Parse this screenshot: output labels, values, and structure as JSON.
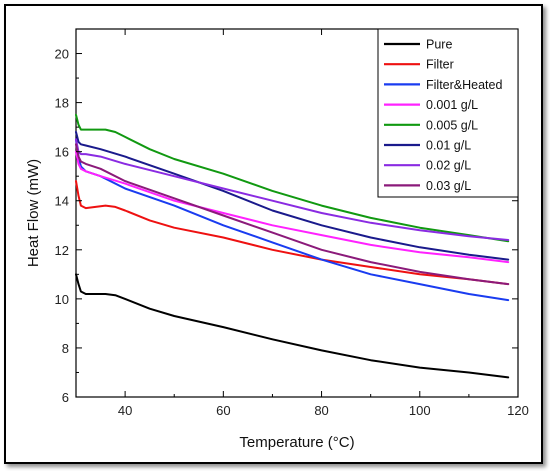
{
  "chart_data": {
    "type": "line",
    "title": "",
    "xlabel": "Temperature (°C)",
    "ylabel": "Heat Flow (mW)",
    "xlim": [
      30,
      120
    ],
    "ylim": [
      6,
      21
    ],
    "xticks": [
      40,
      60,
      80,
      100,
      120
    ],
    "yticks": [
      6,
      8,
      10,
      12,
      14,
      16,
      18,
      20
    ],
    "grid": false,
    "legend_position": "top-right",
    "series": [
      {
        "name": "Pure",
        "color": "#000000",
        "x": [
          30,
          30.5,
          31,
          32,
          34,
          36,
          38,
          40,
          45,
          50,
          60,
          70,
          80,
          90,
          100,
          110,
          118
        ],
        "y": [
          11.0,
          10.6,
          10.3,
          10.2,
          10.2,
          10.2,
          10.15,
          10.0,
          9.6,
          9.3,
          8.85,
          8.35,
          7.9,
          7.5,
          7.2,
          7.0,
          6.8
        ]
      },
      {
        "name": "Filter",
        "color": "#ee1111",
        "x": [
          30,
          30.5,
          31,
          32,
          34,
          36,
          38,
          40,
          45,
          50,
          60,
          70,
          80,
          90,
          100,
          110,
          118
        ],
        "y": [
          14.8,
          14.2,
          13.8,
          13.7,
          13.75,
          13.8,
          13.75,
          13.6,
          13.2,
          12.9,
          12.5,
          12.0,
          11.6,
          11.3,
          11.0,
          10.8,
          10.6
        ]
      },
      {
        "name": "Filter&Heated",
        "color": "#1a3cf0",
        "x": [
          30,
          30.5,
          31,
          32,
          35,
          40,
          50,
          60,
          70,
          80,
          90,
          100,
          110,
          118
        ],
        "y": [
          16.5,
          15.8,
          15.4,
          15.2,
          15.0,
          14.5,
          13.8,
          13.0,
          12.3,
          11.6,
          11.0,
          10.6,
          10.2,
          9.95
        ]
      },
      {
        "name": "0.001 g/L",
        "color": "#ff22ff",
        "x": [
          30,
          30.5,
          31,
          32,
          35,
          40,
          50,
          60,
          70,
          80,
          90,
          100,
          110,
          118
        ],
        "y": [
          16.0,
          15.5,
          15.3,
          15.2,
          15.0,
          14.7,
          14.0,
          13.5,
          13.0,
          12.6,
          12.2,
          11.9,
          11.7,
          11.5
        ]
      },
      {
        "name": "0.005 g/L",
        "color": "#119911",
        "x": [
          30,
          30.5,
          31,
          32,
          34,
          36,
          38,
          40,
          45,
          50,
          60,
          70,
          80,
          90,
          100,
          110,
          118
        ],
        "y": [
          17.5,
          17.1,
          16.9,
          16.9,
          16.9,
          16.9,
          16.8,
          16.6,
          16.1,
          15.7,
          15.1,
          14.4,
          13.8,
          13.3,
          12.9,
          12.6,
          12.35
        ]
      },
      {
        "name": "0.01 g/L",
        "color": "#1a1a8c",
        "x": [
          30,
          30.5,
          31,
          32,
          35,
          40,
          50,
          60,
          70,
          80,
          90,
          100,
          110,
          118
        ],
        "y": [
          16.8,
          16.4,
          16.3,
          16.25,
          16.1,
          15.8,
          15.1,
          14.4,
          13.6,
          13.0,
          12.5,
          12.1,
          11.8,
          11.6
        ]
      },
      {
        "name": "0.02 g/L",
        "color": "#8a2be2",
        "x": [
          30,
          30.5,
          31,
          32,
          35,
          40,
          50,
          60,
          70,
          80,
          90,
          100,
          110,
          118
        ],
        "y": [
          16.5,
          16.0,
          15.9,
          15.9,
          15.8,
          15.5,
          15.0,
          14.5,
          14.0,
          13.5,
          13.1,
          12.8,
          12.55,
          12.4
        ]
      },
      {
        "name": "0.03 g/L",
        "color": "#8b1a7a",
        "x": [
          30,
          30.5,
          31,
          32,
          35,
          40,
          50,
          60,
          70,
          80,
          90,
          100,
          110,
          118
        ],
        "y": [
          16.3,
          15.8,
          15.6,
          15.5,
          15.3,
          14.8,
          14.1,
          13.4,
          12.7,
          12.0,
          11.5,
          11.1,
          10.8,
          10.6
        ]
      }
    ]
  }
}
